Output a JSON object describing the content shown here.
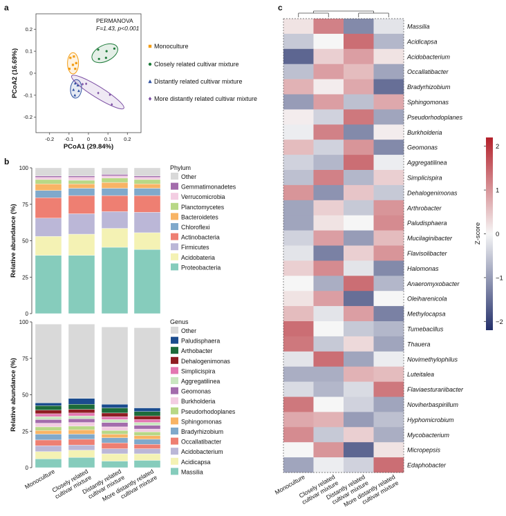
{
  "panel_labels": {
    "a": "a",
    "b": "b",
    "c": "c"
  },
  "colors": {
    "monoculture": "#f39c12",
    "closely": "#1e7b3a",
    "distantly": "#2c4fa0",
    "more_distantly": "#7b4ea3",
    "heat_low": "#24306b",
    "heat_mid": "#f6f6f6",
    "heat_high": "#b3202a"
  },
  "chart_data": [
    {
      "id": "a",
      "type": "scatter",
      "title": "PERMANOVA",
      "stat_text": "F=1.43, p<0.001",
      "xlabel": "PCoA1 (29.84%)",
      "ylabel": "PCoA2 (16.69%)",
      "xlim": [
        -0.27,
        0.27
      ],
      "ylim": [
        -0.27,
        0.27
      ],
      "x_ticks": [
        "-0.2",
        "-0.1",
        "0",
        "0.1",
        "0.2"
      ],
      "x_tick_values": [
        -0.2,
        -0.1,
        0,
        0.1,
        0.2
      ],
      "y_ticks": [
        "0.2",
        "0.1",
        "0",
        "-0.1",
        "-0.2"
      ],
      "y_tick_values": [
        0.2,
        0.1,
        0,
        -0.1,
        -0.2
      ],
      "series": [
        {
          "name": "Monoculture",
          "marker": "square",
          "color": "#f39c12",
          "points": [
            [
              -0.093,
              0.07
            ],
            [
              -0.075,
              0.076
            ],
            [
              -0.08,
              0.038
            ],
            [
              -0.098,
              0.02
            ],
            [
              -0.068,
              0.02
            ],
            [
              -0.063,
              0.046
            ]
          ]
        },
        {
          "name": "Closely related cultivar mixture",
          "marker": "circle",
          "color": "#1e7b3a",
          "points": [
            [
              0.05,
              0.107
            ],
            [
              0.093,
              0.1
            ],
            [
              0.133,
              0.112
            ],
            [
              0.054,
              0.065
            ],
            [
              0.09,
              0.07
            ]
          ]
        },
        {
          "name": "Distantly related cultivar mixture",
          "marker": "triangle",
          "color": "#2c4fa0",
          "points": [
            [
              -0.068,
              -0.046
            ],
            [
              -0.055,
              -0.055
            ],
            [
              -0.07,
              -0.1
            ],
            [
              -0.05,
              -0.08
            ],
            [
              -0.077,
              -0.075
            ]
          ]
        },
        {
          "name": "More distantly related cultivar mixture",
          "marker": "diamond",
          "color": "#7b4ea3",
          "points": [
            [
              -0.03,
              -0.05
            ],
            [
              -0.012,
              -0.048
            ],
            [
              0.05,
              -0.09
            ],
            [
              0.11,
              -0.098
            ],
            [
              0.12,
              -0.142
            ]
          ]
        }
      ]
    },
    {
      "id": "b-phylum",
      "type": "bar",
      "stacked": true,
      "ylabel": "Relative abundance (%)",
      "ylim": [
        0,
        100
      ],
      "y_ticks": [
        "100",
        "75",
        "50",
        "25",
        "0"
      ],
      "y_tick_values": [
        100,
        75,
        50,
        25,
        0
      ],
      "legend_title": "Phylum",
      "categories": [
        "Monoculture",
        "Closely related cultivar mixture",
        "Distantly related cultivar mixture",
        "More distantly related cultivar mixture"
      ],
      "series": [
        {
          "name": "Proteobacteria",
          "color": "#86ccbc",
          "values": [
            40,
            40,
            45.5,
            44
          ]
        },
        {
          "name": "Acidobateria",
          "color": "#f4f2b4",
          "values": [
            13,
            14.5,
            13,
            11.5
          ]
        },
        {
          "name": "Firmicutes",
          "color": "#bbb7d7",
          "values": [
            12.5,
            14,
            11.5,
            14
          ]
        },
        {
          "name": "Actinobacteria",
          "color": "#ee7f72",
          "values": [
            14,
            12.5,
            11,
            11.5
          ]
        },
        {
          "name": "Chloroflexi",
          "color": "#80a9cb",
          "values": [
            5,
            5,
            5,
            5
          ]
        },
        {
          "name": "Bacteroidetes",
          "color": "#f8b465",
          "values": [
            4.5,
            3,
            4,
            3
          ]
        },
        {
          "name": "Planctomycetes",
          "color": "#b8d886",
          "values": [
            3,
            2.5,
            3,
            3
          ]
        },
        {
          "name": "Verrucomicrobia",
          "color": "#f3cde2",
          "values": [
            1.5,
            2,
            1.5,
            1.5
          ]
        },
        {
          "name": "Gemmatimonadetes",
          "color": "#a36cac",
          "values": [
            1,
            1,
            1,
            1
          ]
        },
        {
          "name": "Other",
          "color": "#d9d9d9",
          "values": [
            5.5,
            5.5,
            4.5,
            5.5
          ]
        }
      ]
    },
    {
      "id": "b-genus",
      "type": "bar",
      "stacked": true,
      "ylabel": "Relative abundance (%)",
      "ylim": [
        0,
        100
      ],
      "y_ticks": [
        "100",
        "75",
        "50",
        "25",
        "0"
      ],
      "y_tick_values": [
        100,
        75,
        50,
        25,
        0
      ],
      "legend_title": "Genus",
      "categories": [
        "Monoculture",
        "Closely related cultivar mixture",
        "Distantly related cultivar mixture",
        "More distantly related cultivar mixture"
      ],
      "series": [
        {
          "name": "Massilia",
          "color": "#86ccbc",
          "values": [
            6,
            7,
            4.5,
            5
          ]
        },
        {
          "name": "Acidicapsa",
          "color": "#f4f2b4",
          "values": [
            5,
            5,
            5,
            4.5
          ]
        },
        {
          "name": "Acidobacterium",
          "color": "#bbb7d7",
          "values": [
            4,
            3.5,
            3.5,
            3.5
          ]
        },
        {
          "name": "Occallatibacter",
          "color": "#ee7f72",
          "values": [
            4,
            4,
            4,
            3
          ]
        },
        {
          "name": "Bradyrhizobium",
          "color": "#80a9cb",
          "values": [
            4,
            3.5,
            3.5,
            3.5
          ]
        },
        {
          "name": "Sphingomonas",
          "color": "#f8b465",
          "values": [
            2.5,
            3,
            2.5,
            2.5
          ]
        },
        {
          "name": "Pseudorhodoplanes",
          "color": "#b8d886",
          "values": [
            2.5,
            2.5,
            2.5,
            2.5
          ]
        },
        {
          "name": "Burkholderia",
          "color": "#f3cde2",
          "values": [
            2.5,
            2.5,
            2.5,
            2
          ]
        },
        {
          "name": "Geomonas",
          "color": "#a36cac",
          "values": [
            2.5,
            2.5,
            3,
            2.5
          ]
        },
        {
          "name": "Aggregatilinea",
          "color": "#c9e7c0",
          "values": [
            2,
            2,
            2,
            2
          ]
        },
        {
          "name": "Simplicispira",
          "color": "#e378b2",
          "values": [
            2,
            2,
            2,
            2
          ]
        },
        {
          "name": "Dehalogenimonas",
          "color": "#8f1c22",
          "values": [
            2.5,
            2.5,
            2.5,
            2.5
          ]
        },
        {
          "name": "Arthobacter",
          "color": "#1d6b3a",
          "values": [
            3,
            3.5,
            3.5,
            3
          ]
        },
        {
          "name": "Paludisphaera",
          "color": "#1b4c8e",
          "values": [
            2,
            4,
            2.5,
            2.5
          ]
        },
        {
          "name": "Other",
          "color": "#d9d9d9",
          "values": [
            54,
            51,
            53,
            55
          ]
        }
      ]
    },
    {
      "id": "c",
      "type": "heatmap",
      "colorbar_label": "Z-score",
      "colorbar_range": [
        -2.2,
        2.2
      ],
      "colorbar_ticks": [
        "2",
        "1",
        "0",
        "−1",
        "−2"
      ],
      "colorbar_tick_values": [
        2,
        1,
        0,
        -1,
        -2
      ],
      "columns": [
        "Monoculture",
        "Closely related cultivar mixture",
        "Distantly related cultivar mixture",
        "More distantly related cultivar mixture"
      ],
      "rows": [
        "Massilia",
        "Acidicapsa",
        "Acidobacterium",
        "Occallatibacter",
        "Bradyrhizobium",
        "Sphingomonas",
        "Pseudorhodoplanes",
        "Burkholderia",
        "Geomonas",
        "Aggregatilinea",
        "Simplicispira",
        "Dehalogenimonas",
        "Arthrobacter",
        "Paludisphaera",
        "Mucilaginibacter",
        "Flavisolibacter",
        "Halomonas",
        "Anaeromyxobacter",
        "Oleiharenicola",
        "Methylocapsa",
        "Tumebacillus",
        "Thauera",
        "Novimethylophilus",
        "Luteitalea",
        "Flaviaesturariibacter",
        "Noviherbaspirillum",
        "Hyphomicrobium",
        "Mycobacterium",
        "Micropepsis",
        "Edaphobacter"
      ],
      "values": [
        [
          0.2,
          1.2,
          -1.2,
          -0.2
        ],
        [
          -0.5,
          0.0,
          1.4,
          -0.7
        ],
        [
          -1.6,
          0.4,
          0.9,
          0.2
        ],
        [
          -0.6,
          0.9,
          0.6,
          -0.9
        ],
        [
          0.7,
          0.1,
          0.8,
          -1.5
        ],
        [
          -1.0,
          0.9,
          -0.6,
          0.8
        ],
        [
          0.1,
          -0.4,
          1.3,
          -0.9
        ],
        [
          -0.1,
          1.2,
          -1.2,
          0.1
        ],
        [
          0.6,
          -0.4,
          1.0,
          -1.2
        ],
        [
          -0.4,
          -0.7,
          1.4,
          -0.1
        ],
        [
          -0.6,
          1.2,
          -0.7,
          0.4
        ],
        [
          1.0,
          -1.1,
          0.5,
          -0.5
        ],
        [
          -0.9,
          0.4,
          -0.5,
          1.0
        ],
        [
          -0.9,
          0.2,
          0.0,
          1.1
        ],
        [
          -0.4,
          0.9,
          -1.0,
          0.6
        ],
        [
          -0.2,
          -1.3,
          0.4,
          1.0
        ],
        [
          0.4,
          1.1,
          -0.2,
          -1.2
        ],
        [
          0.0,
          -0.8,
          1.4,
          -0.7
        ],
        [
          0.2,
          0.9,
          -1.5,
          0.0
        ],
        [
          0.6,
          -0.2,
          0.9,
          -1.3
        ],
        [
          1.4,
          0.0,
          -0.5,
          -0.7
        ],
        [
          1.3,
          -0.5,
          0.3,
          -0.9
        ],
        [
          -0.2,
          1.4,
          -0.9,
          -0.1
        ],
        [
          -0.8,
          -0.8,
          0.7,
          0.6
        ],
        [
          -0.3,
          -0.7,
          -0.3,
          1.3
        ],
        [
          1.3,
          0.0,
          -0.4,
          -0.9
        ],
        [
          0.8,
          0.7,
          -1.0,
          -0.6
        ],
        [
          1.1,
          -0.5,
          0.4,
          -0.8
        ],
        [
          0.0,
          1.0,
          -1.6,
          0.2
        ],
        [
          -0.9,
          -0.1,
          -0.4,
          1.4
        ]
      ]
    }
  ]
}
